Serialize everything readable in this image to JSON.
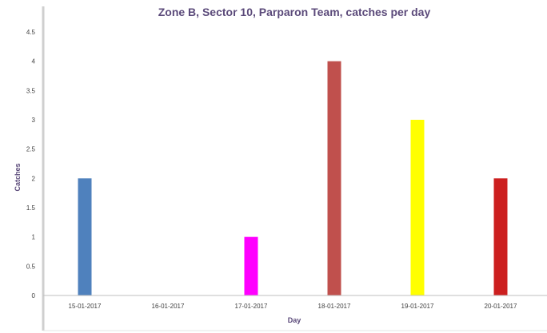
{
  "chart_data": {
    "type": "bar",
    "title": "Zone B, Sector 10, Parparon Team, catches per day",
    "xlabel": "Day",
    "ylabel": "Catches",
    "categories": [
      "15-01-2017",
      "16-01-2017",
      "17-01-2017",
      "18-01-2017",
      "19-01-2017",
      "20-01-2017"
    ],
    "values": [
      2,
      0,
      1,
      4,
      3,
      2
    ],
    "bar_colors": [
      "#4f81bd",
      "#4f81bd",
      "#ff00ff",
      "#c0504d",
      "#ffff00",
      "#cc1f1f"
    ],
    "ylim": [
      0,
      4.5
    ],
    "yticks": [
      "0",
      "0.5",
      "1",
      "1.5",
      "2",
      "2.5",
      "3",
      "3.5",
      "4",
      "4.5"
    ],
    "grid": false,
    "legend": "none"
  }
}
